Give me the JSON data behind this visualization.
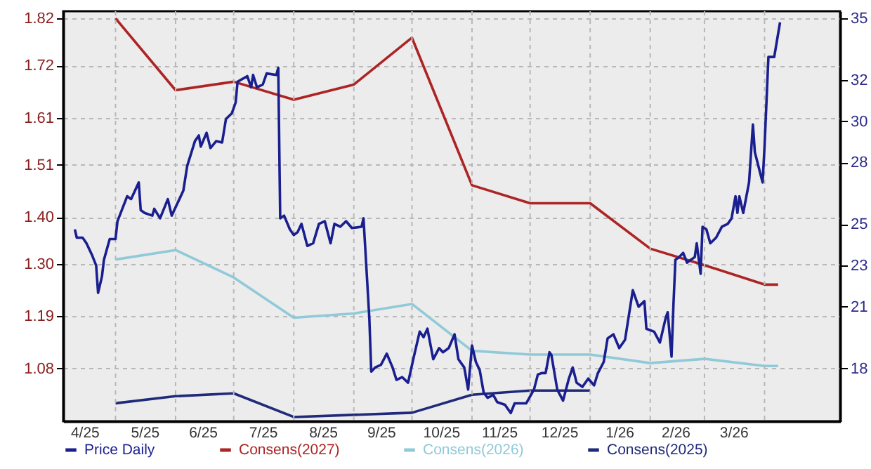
{
  "chart_data": {
    "type": "line",
    "xlim": [
      "2025-04-04",
      "2026-05-10"
    ],
    "xticks": [
      {
        "value": "2025-04-15",
        "label": "4/25"
      },
      {
        "value": "2025-05-01",
        "label": null
      },
      {
        "value": "2025-05-16",
        "label": "5/25"
      },
      {
        "value": "2025-06-01",
        "label": null
      },
      {
        "value": "2025-06-15",
        "label": "6/25"
      },
      {
        "value": "2025-07-01",
        "label": null
      },
      {
        "value": "2025-07-16",
        "label": "7/25"
      },
      {
        "value": "2025-08-01",
        "label": null
      },
      {
        "value": "2025-08-16",
        "label": "8/25"
      },
      {
        "value": "2025-09-01",
        "label": null
      },
      {
        "value": "2025-09-15",
        "label": "9/25"
      },
      {
        "value": "2025-10-01",
        "label": null
      },
      {
        "value": "2025-10-16",
        "label": "10/25"
      },
      {
        "value": "2025-11-01",
        "label": null
      },
      {
        "value": "2025-11-15",
        "label": "11/25"
      },
      {
        "value": "2025-12-01",
        "label": null
      },
      {
        "value": "2025-12-16",
        "label": "12/25"
      },
      {
        "value": "2026-01-01",
        "label": null
      },
      {
        "value": "2026-01-16",
        "label": "1/26"
      },
      {
        "value": "2026-02-01",
        "label": null
      },
      {
        "value": "2026-02-14",
        "label": "2/26"
      },
      {
        "value": "2026-03-01",
        "label": null
      },
      {
        "value": "2026-03-16",
        "label": "3/26"
      },
      {
        "value": "2026-04-01",
        "label": null
      }
    ],
    "ylim": [
      0.968,
      1.835
    ],
    "yticks": [
      1.08,
      1.19,
      {
        "value": 1.3,
        "label": "1.30"
      },
      {
        "value": 1.4,
        "label": "1.40"
      },
      1.51,
      1.61,
      1.72,
      1.82
    ],
    "y2lim": [
      15.44,
      35.34
    ],
    "y2ticks": [
      18,
      21,
      23,
      25,
      28,
      30,
      32,
      35
    ],
    "grid": true,
    "legend": "bottom",
    "line_style": "solid",
    "marker": "none",
    "series": [
      {
        "name": "Price Daily",
        "color": "#1a1f8f",
        "axis": "y2",
        "x": [
          "2025-04-10",
          "2025-04-11",
          "2025-04-14",
          "2025-04-16",
          "2025-04-19",
          "2025-04-21",
          "2025-04-22",
          "2025-04-24",
          "2025-04-25",
          "2025-04-28",
          "2025-05-01",
          "2025-05-02",
          "2025-05-07",
          "2025-05-09",
          "2025-05-13",
          "2025-05-14",
          "2025-05-16",
          "2025-05-20",
          "2025-05-21",
          "2025-05-24",
          "2025-05-28",
          "2025-05-30",
          "2025-06-05",
          "2025-06-07",
          "2025-06-11",
          "2025-06-13",
          "2025-06-14",
          "2025-06-17",
          "2025-06-19",
          "2025-06-22",
          "2025-06-25",
          "2025-06-27",
          "2025-06-30",
          "2025-07-02",
          "2025-07-03",
          "2025-07-08",
          "2025-07-10",
          "2025-07-11",
          "2025-07-13",
          "2025-07-16",
          "2025-07-18",
          "2025-07-23",
          "2025-07-24",
          "2025-07-25",
          "2025-07-27",
          "2025-07-30",
          "2025-08-01",
          "2025-08-03",
          "2025-08-05",
          "2025-08-08",
          "2025-08-11",
          "2025-08-14",
          "2025-08-17",
          "2025-08-20",
          "2025-08-22",
          "2025-08-25",
          "2025-08-28",
          "2025-08-31",
          "2025-09-05",
          "2025-09-06",
          "2025-09-09",
          "2025-09-10",
          "2025-09-12",
          "2025-09-15",
          "2025-09-18",
          "2025-09-21",
          "2025-09-23",
          "2025-09-26",
          "2025-09-29",
          "2025-10-02",
          "2025-10-05",
          "2025-10-07",
          "2025-10-09",
          "2025-10-12",
          "2025-10-15",
          "2025-10-17",
          "2025-10-20",
          "2025-10-23",
          "2025-10-25",
          "2025-10-28",
          "2025-10-30",
          "2025-11-01",
          "2025-11-03",
          "2025-11-05",
          "2025-11-07",
          "2025-11-09",
          "2025-11-12",
          "2025-11-14",
          "2025-11-18",
          "2025-11-21",
          "2025-11-23",
          "2025-11-29",
          "2025-12-03",
          "2025-12-05",
          "2025-12-07",
          "2025-12-09",
          "2025-12-11",
          "2025-12-12",
          "2025-12-15",
          "2025-12-18",
          "2025-12-21",
          "2025-12-23",
          "2025-12-25",
          "2025-12-28",
          "2025-12-31",
          "2026-01-03",
          "2026-01-05",
          "2026-01-08",
          "2026-01-10",
          "2026-01-13",
          "2026-01-16",
          "2026-01-19",
          "2026-01-23",
          "2026-01-26",
          "2026-01-29",
          "2026-01-30",
          "2026-02-03",
          "2026-02-06",
          "2026-02-09",
          "2026-02-10",
          "2026-02-12",
          "2026-02-13",
          "2026-02-14",
          "2026-02-16",
          "2026-02-18",
          "2026-02-20",
          "2026-02-22",
          "2026-02-24",
          "2026-02-25",
          "2026-02-27",
          "2026-02-28",
          "2026-03-02",
          "2026-03-04",
          "2026-03-07",
          "2026-03-10",
          "2026-03-13",
          "2026-03-15",
          "2026-03-17",
          "2026-03-18",
          "2026-03-19",
          "2026-03-21",
          "2026-03-24",
          "2026-03-26",
          "2026-03-27",
          "2026-03-31",
          "2026-04-01",
          "2026-04-03",
          "2026-04-06",
          "2026-04-09"
        ],
        "values": [
          24.75,
          24.35,
          24.35,
          24.08,
          23.48,
          23.0,
          21.67,
          22.47,
          23.27,
          24.28,
          24.28,
          25.15,
          26.36,
          26.22,
          27.03,
          25.69,
          25.55,
          25.42,
          25.75,
          25.29,
          26.22,
          25.42,
          26.63,
          27.83,
          29.04,
          29.31,
          28.77,
          29.44,
          28.7,
          29.04,
          28.97,
          30.11,
          30.38,
          30.91,
          31.92,
          32.19,
          31.65,
          32.25,
          31.65,
          31.78,
          32.32,
          32.25,
          32.59,
          25.29,
          25.42,
          24.75,
          24.48,
          24.62,
          25.02,
          23.95,
          24.08,
          25.02,
          25.15,
          24.08,
          25.02,
          24.88,
          25.15,
          24.82,
          24.88,
          25.29,
          20.46,
          17.85,
          18.05,
          18.18,
          18.72,
          18.05,
          17.45,
          17.58,
          17.31,
          18.58,
          19.79,
          19.52,
          19.93,
          18.45,
          18.99,
          18.79,
          18.99,
          19.66,
          18.45,
          18.05,
          16.98,
          19.12,
          18.32,
          17.92,
          16.84,
          16.58,
          16.71,
          16.37,
          16.24,
          15.84,
          16.31,
          16.31,
          16.98,
          17.71,
          17.78,
          17.78,
          18.79,
          18.65,
          16.98,
          16.44,
          17.51,
          18.05,
          17.31,
          17.11,
          17.51,
          17.18,
          17.78,
          18.32,
          19.46,
          19.66,
          18.99,
          19.39,
          21.8,
          21.0,
          21.27,
          19.93,
          19.79,
          19.26,
          20.46,
          20.73,
          18.58,
          21.13,
          23.28,
          23.41,
          23.61,
          23.14,
          23.28,
          23.41,
          24.08,
          22.6,
          24.88,
          24.75,
          24.08,
          24.35,
          24.88,
          25.02,
          25.29,
          26.36,
          25.55,
          26.36,
          25.55,
          27.03,
          29.84,
          28.5,
          27.03,
          28.77,
          33.12,
          33.12,
          34.8
        ]
      },
      {
        "name": "Consens(2027)",
        "color": "#ad2424",
        "x": [
          "2025-05-01",
          "2025-06-01",
          "2025-07-01",
          "2025-08-01",
          "2025-09-01",
          "2025-10-01",
          "2025-11-01",
          "2025-12-01",
          "2026-01-01",
          "2026-02-01",
          "2026-03-01",
          "2026-04-01",
          "2026-04-08"
        ],
        "values": [
          1.82,
          1.668,
          1.686,
          1.648,
          1.68,
          1.779,
          1.467,
          1.429,
          1.429,
          1.333,
          1.298,
          1.257,
          1.257
        ]
      },
      {
        "name": "Consens(2026)",
        "color": "#90cad9",
        "x": [
          "2025-05-01",
          "2025-06-01",
          "2025-07-01",
          "2025-08-01",
          "2025-09-01",
          "2025-10-01",
          "2025-11-01",
          "2025-12-01",
          "2026-01-01",
          "2026-02-01",
          "2026-03-01",
          "2026-04-01",
          "2026-04-08"
        ],
        "values": [
          1.31,
          1.33,
          1.272,
          1.187,
          1.196,
          1.216,
          1.117,
          1.109,
          1.109,
          1.091,
          1.1,
          1.085,
          1.085
        ]
      },
      {
        "name": "Consens(2025)",
        "color": "#1f2a7a",
        "x": [
          "2025-05-01",
          "2025-06-01",
          "2025-07-01",
          "2025-08-01",
          "2025-10-01",
          "2025-11-01",
          "2025-12-01",
          "2026-01-01"
        ],
        "values": [
          1.006,
          1.021,
          1.027,
          0.977,
          0.986,
          1.024,
          1.033,
          1.033
        ]
      }
    ]
  }
}
